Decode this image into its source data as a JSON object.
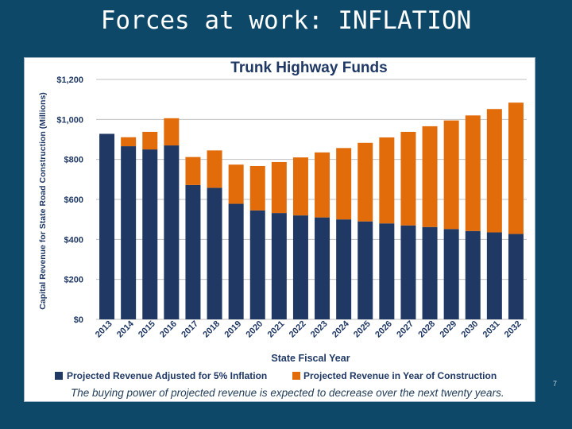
{
  "slide": {
    "title": "Forces at work:  INFLATION",
    "page_number": "7"
  },
  "caption": "The buying power of projected revenue is expected to decrease over the next twenty years.",
  "colors": {
    "background": "#0e4868",
    "series_adjusted": "#1f3864",
    "series_year_of_construction": "#e36c0a",
    "title_text": "#1f3864",
    "grid": "#bfbfbf"
  },
  "chart_data": {
    "type": "bar",
    "stacked": true,
    "title": "Trunk Highway Funds",
    "xlabel": "State Fiscal Year",
    "ylabel": "Capital Revenue for State Road Construction (Millions)",
    "ylim": [
      0,
      1200
    ],
    "y_ticks": [
      "$0",
      "$200",
      "$400",
      "$600",
      "$800",
      "$1,000",
      "$1,200"
    ],
    "y_tick_values": [
      0,
      200,
      400,
      600,
      800,
      1000,
      1200
    ],
    "grid": true,
    "legend_position": "bottom",
    "categories": [
      "2013",
      "2014",
      "2015",
      "2016",
      "2017",
      "2018",
      "2019",
      "2020",
      "2021",
      "2022",
      "2023",
      "2024",
      "2025",
      "2026",
      "2027",
      "2028",
      "2029",
      "2030",
      "2031",
      "2032"
    ],
    "series": [
      {
        "name": "Projected Revenue Adjusted for 5% Inflation",
        "values": [
          928,
          866,
          850,
          870,
          672,
          658,
          578,
          545,
          532,
          520,
          510,
          500,
          490,
          480,
          470,
          462,
          452,
          442,
          435,
          427
        ]
      },
      {
        "name": "Projected Revenue in Year of Construction",
        "values": [
          0,
          45,
          88,
          136,
          140,
          187,
          196,
          222,
          255,
          290,
          325,
          357,
          393,
          430,
          468,
          504,
          543,
          578,
          617,
          657
        ]
      }
    ],
    "totals": [
      928,
      911,
      938,
      1006,
      812,
      845,
      774,
      767,
      787,
      810,
      835,
      857,
      883,
      910,
      938,
      966,
      995,
      1020,
      1052,
      1084
    ]
  }
}
